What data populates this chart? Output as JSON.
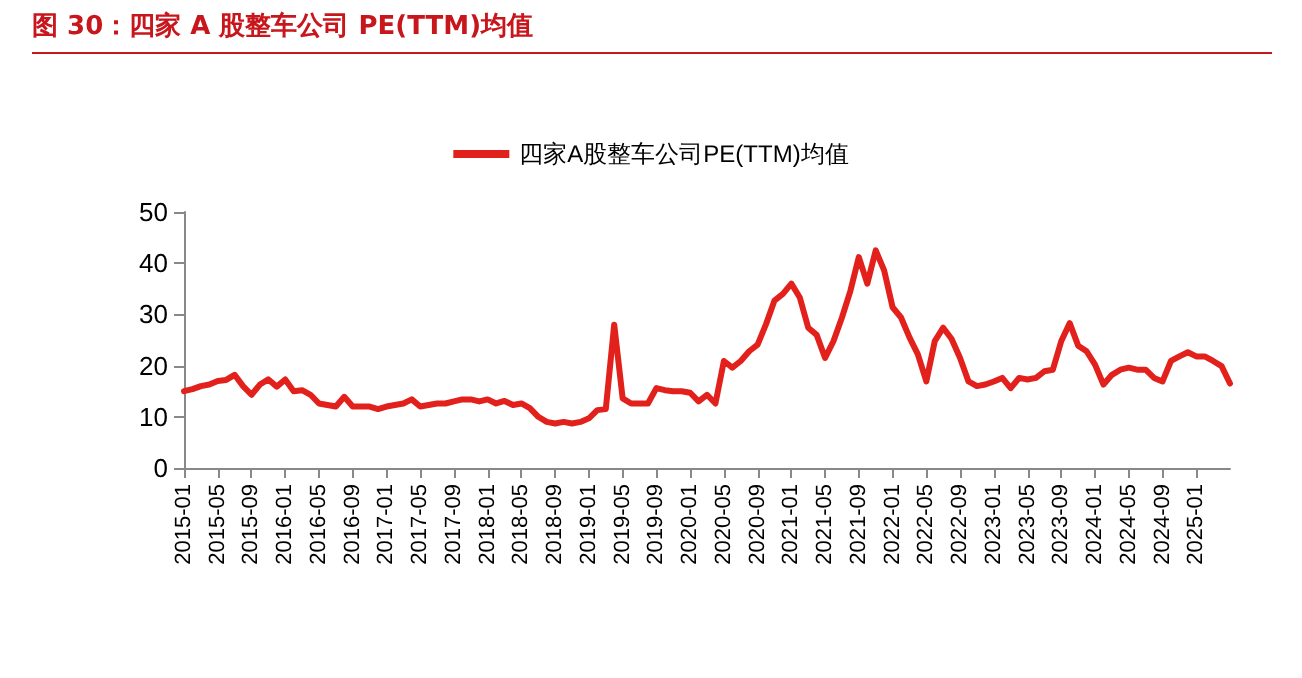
{
  "chart_data": {
    "type": "line",
    "title": "图 30：四家 A 股整车公司 PE(TTM)均值",
    "categories": [
      "2015-01",
      null,
      null,
      null,
      "2015-05",
      null,
      null,
      null,
      "2015-09",
      null,
      null,
      null,
      "2016-01",
      null,
      null,
      null,
      "2016-05",
      null,
      null,
      null,
      "2016-09",
      null,
      null,
      null,
      "2017-01",
      null,
      null,
      null,
      "2017-05",
      null,
      null,
      null,
      "2017-09",
      null,
      null,
      null,
      "2018-01",
      null,
      null,
      null,
      "2018-05",
      null,
      null,
      null,
      "2018-09",
      null,
      null,
      null,
      "2019-01",
      null,
      null,
      null,
      "2019-05",
      null,
      null,
      null,
      "2019-09",
      null,
      null,
      null,
      "2020-01",
      null,
      null,
      null,
      "2020-05",
      null,
      null,
      null,
      "2020-09",
      null,
      null,
      null,
      "2021-01",
      null,
      null,
      null,
      "2021-05",
      null,
      null,
      null,
      "2021-09",
      null,
      null,
      null,
      "2022-01",
      null,
      null,
      null,
      "2022-05",
      null,
      null,
      null,
      "2022-09",
      null,
      null,
      null,
      "2023-01",
      null,
      null,
      null,
      "2023-05",
      null,
      null,
      null,
      "2023-09",
      null,
      null,
      null,
      "2024-01",
      null,
      null,
      null,
      "2024-05",
      null,
      null,
      null,
      "2024-09",
      null,
      null,
      null,
      "2025-01",
      null,
      null,
      null,
      null
    ],
    "series": [
      {
        "name": "四家A股整车公司PE(TTM)均值",
        "color": "#e3211c",
        "values": [
          15,
          15.4,
          16,
          16.3,
          17,
          17.2,
          18.2,
          16,
          14.3,
          16.3,
          17.3,
          15.9,
          17.3,
          15,
          15.2,
          14.3,
          12.6,
          12.3,
          12,
          13.9,
          12,
          12,
          12,
          11.5,
          12,
          12.3,
          12.6,
          13.4,
          12,
          12.3,
          12.6,
          12.6,
          13,
          13.4,
          13.4,
          13,
          13.4,
          12.6,
          13.1,
          12.3,
          12.6,
          11.7,
          10,
          9,
          8.7,
          9,
          8.7,
          9,
          9.7,
          11.3,
          11.5,
          28,
          13.6,
          12.6,
          12.6,
          12.6,
          15.6,
          15.2,
          15,
          15,
          14.7,
          13,
          14.3,
          12.6,
          20.9,
          19.6,
          20.9,
          22.8,
          24.1,
          28.1,
          32.7,
          34,
          36,
          33.3,
          27.4,
          26,
          21.5,
          24.8,
          29.4,
          34.6,
          41.2,
          36,
          42.5,
          38.6,
          31.4,
          29.4,
          25.5,
          22.2,
          16.9,
          24.8,
          27.4,
          25.2,
          21.5,
          16.9,
          16,
          16.3,
          16.9,
          17.6,
          15.6,
          17.6,
          17.3,
          17.6,
          18.9,
          19.2,
          24.8,
          28.3,
          23.9,
          22.8,
          20.2,
          16.3,
          18.2,
          19.2,
          19.6,
          19.2,
          19.2,
          17.6,
          16.9,
          20.9,
          21.8,
          22.6,
          21.8,
          21.8,
          20.9,
          19.9,
          16.5
        ]
      }
    ],
    "ylim": [
      0,
      50
    ],
    "yticks": [
      0,
      10,
      20,
      30,
      40,
      50
    ],
    "grid": false,
    "legend": "top",
    "marker": "none",
    "line_style": "solid"
  }
}
